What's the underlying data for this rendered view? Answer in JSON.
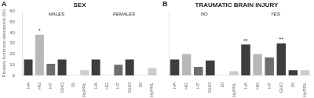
{
  "chart_data": [
    {
      "type": "bar",
      "title": "SEX",
      "panel_label": "A",
      "ylabel": "Pituitary hormone alterations (%)",
      "categories": [
        "HA",
        "HG",
        "HT",
        "GHD",
        "DI",
        "HyPRL",
        "HA",
        "HG",
        "HT",
        "GHD",
        "DI",
        "HyPRL"
      ],
      "values": [
        15,
        38,
        11,
        15,
        0,
        5,
        15,
        0,
        10,
        15,
        0,
        7
      ],
      "colors": [
        "#3d3d3d",
        "#b8b8b8",
        "#6e6e6e",
        "#3d3d3d",
        "#3d3d3d",
        "#cccccc",
        "#3d3d3d",
        "#b8b8b8",
        "#6e6e6e",
        "#3d3d3d",
        "#3d3d3d",
        "#cccccc"
      ],
      "group_labels": [
        "MALES",
        "FEMALES"
      ],
      "annotations": [
        {
          "text": "*",
          "index": 1
        }
      ],
      "ylim": [
        0,
        60
      ],
      "yticks": [
        0,
        10,
        20,
        30,
        40,
        50,
        60
      ],
      "grid": false
    },
    {
      "type": "bar",
      "title": "TRAUMATIC BRAIN INJURY",
      "panel_label": "B",
      "categories": [
        "HA",
        "HG",
        "HT",
        "GHD",
        "DI",
        "HyPRL",
        "HA",
        "HG",
        "HT",
        "GHD",
        "DI",
        "HyPRL"
      ],
      "values": [
        15,
        20,
        8,
        14,
        0,
        4,
        29,
        20,
        17,
        30,
        5,
        5
      ],
      "colors": [
        "#3d3d3d",
        "#b8b8b8",
        "#6e6e6e",
        "#3d3d3d",
        "#3d3d3d",
        "#cccccc",
        "#3d3d3d",
        "#b8b8b8",
        "#6e6e6e",
        "#3d3d3d",
        "#3d3d3d",
        "#cccccc"
      ],
      "group_labels": [
        "NO",
        "YES"
      ],
      "annotations": [
        {
          "text": "**",
          "index": 6
        },
        {
          "text": "**",
          "index": 9
        }
      ],
      "ylim": [
        0,
        60
      ],
      "yticks": [
        0,
        10,
        20,
        30,
        40,
        50,
        60
      ],
      "grid": false,
      "tick_labels": "x"
    }
  ]
}
